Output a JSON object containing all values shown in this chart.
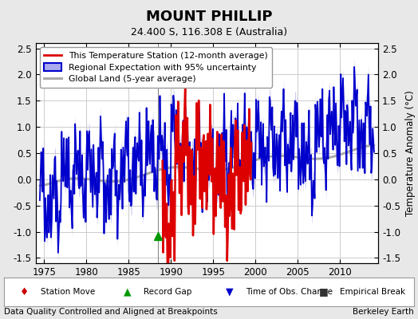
{
  "title": "MOUNT PHILLIP",
  "subtitle": "24.400 S, 116.308 E (Australia)",
  "ylabel": "Temperature Anomaly (°C)",
  "xlabel_bottom_left": "Data Quality Controlled and Aligned at Breakpoints",
  "xlabel_bottom_right": "Berkeley Earth",
  "ylim": [
    -1.6,
    2.6
  ],
  "xlim": [
    1974.0,
    2014.5
  ],
  "yticks": [
    -1.5,
    -1.0,
    -0.5,
    0.0,
    0.5,
    1.0,
    1.5,
    2.0,
    2.5
  ],
  "xticks": [
    1975,
    1980,
    1985,
    1990,
    1995,
    2000,
    2005,
    2010
  ],
  "record_gap_x": 1988.5,
  "record_gap_y": -1.08,
  "vline_x": 1988.5,
  "bg_color": "#e8e8e8",
  "plot_bg_color": "#ffffff",
  "red_line_color": "#dd0000",
  "blue_line_color": "#0000cc",
  "blue_fill_color": "#aaaaee",
  "gray_line_color": "#aaaaaa",
  "legend_items": [
    {
      "label": "This Temperature Station (12-month average)",
      "color": "#dd0000",
      "lw": 2.0
    },
    {
      "label": "Regional Expectation with 95% uncertainty",
      "color": "#0000cc",
      "lw": 1.8
    },
    {
      "label": "Global Land (5-year average)",
      "color": "#aaaaaa",
      "lw": 2.2
    }
  ]
}
